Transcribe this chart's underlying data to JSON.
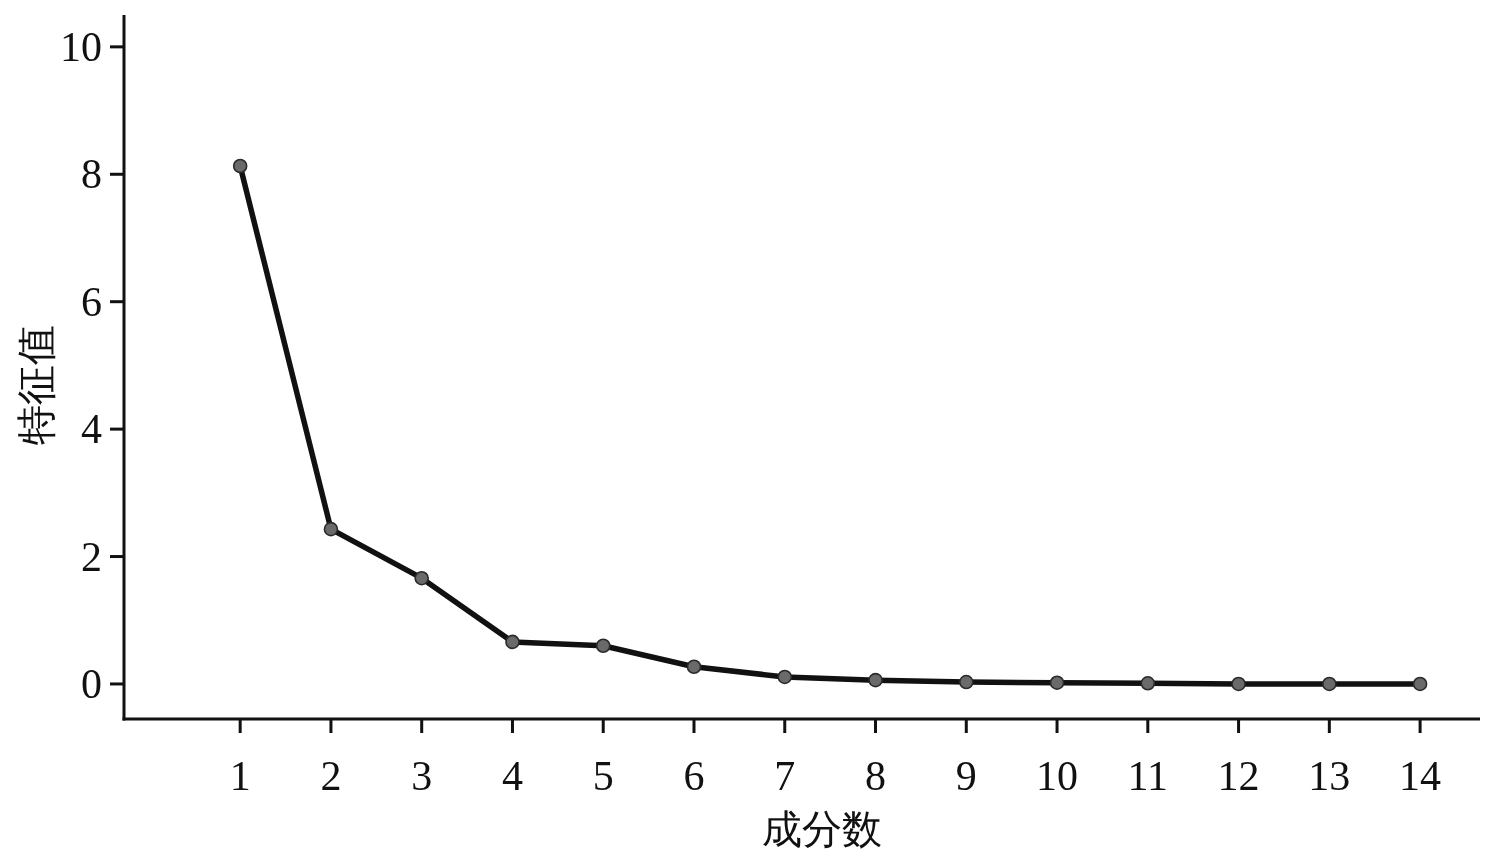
{
  "chart_data": {
    "type": "line",
    "xlabel": "成分数",
    "ylabel": "特征值",
    "x": [
      1,
      2,
      3,
      4,
      5,
      6,
      7,
      8,
      9,
      10,
      11,
      12,
      13,
      14
    ],
    "series": [
      {
        "color": "#111111",
        "colors": [
          "#6a6a6a",
          "#6a6a6a",
          "#6a6a6a",
          "#6a6a6a",
          "#6a6a6a",
          "#6a6a6a",
          "#6a6a6a",
          "#6a6a6a",
          "#6a6a6a",
          "#6a6a6a",
          "#6a6a6a",
          "#6a6a6a",
          "#6a6a6a",
          "#6a6a6a"
        ],
        "values": [
          8.13,
          2.43,
          1.66,
          0.66,
          0.6,
          0.27,
          0.11,
          0.06,
          0.03,
          0.02,
          0.01,
          0,
          0,
          0
        ]
      }
    ],
    "xlim": [
      -0.28,
      14.66
    ],
    "ylim": [
      -0.55,
      10.5
    ],
    "xticks": [
      1,
      2,
      3,
      4,
      5,
      6,
      7,
      8,
      9,
      10,
      11,
      12,
      13,
      14
    ],
    "yticks": [
      0,
      2,
      4,
      6,
      8,
      10
    ],
    "marker": "circle",
    "line_style": "solid"
  }
}
